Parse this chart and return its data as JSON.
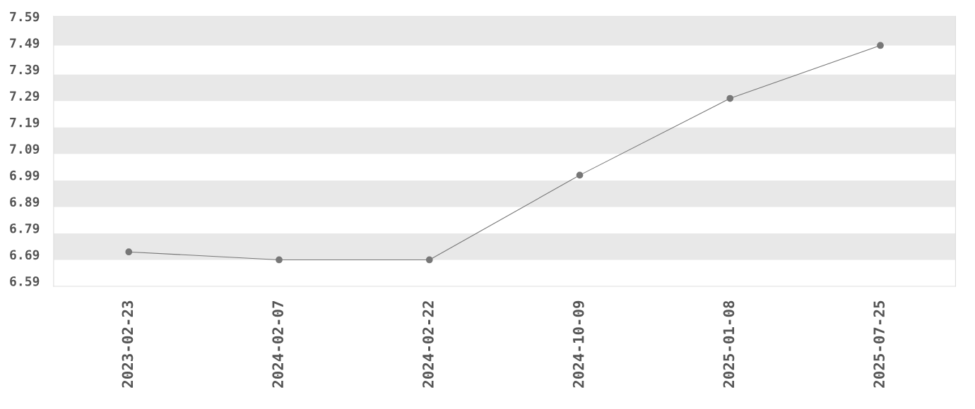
{
  "chart_data": {
    "type": "line",
    "categories": [
      "2023-02-23",
      "2024-02-07",
      "2024-02-22",
      "2024-10-09",
      "2025-01-08",
      "2025-07-25"
    ],
    "series": [
      {
        "color": "#777777",
        "values": [
          6.7,
          6.67,
          6.67,
          6.99,
          7.28,
          7.48
        ]
      }
    ],
    "ylim": [
      6.57,
      7.59
    ],
    "yticks": [
      6.59,
      6.69,
      6.79,
      6.89,
      6.99,
      7.09,
      7.19,
      7.29,
      7.39,
      7.49,
      7.59
    ],
    "bands": [
      {
        "axis": "y",
        "from": 7.48,
        "to": 7.59,
        "color": "#e8e8e8"
      },
      {
        "axis": "y",
        "from": 7.27,
        "to": 7.37,
        "color": "#e8e8e8"
      },
      {
        "axis": "y",
        "from": 7.07,
        "to": 7.17,
        "color": "#e8e8e8"
      },
      {
        "axis": "y",
        "from": 6.87,
        "to": 6.97,
        "color": "#e8e8e8"
      },
      {
        "axis": "y",
        "from": 6.67,
        "to": 6.77,
        "color": "#e8e8e8"
      }
    ],
    "marker": "circle",
    "line_style": "solid"
  }
}
